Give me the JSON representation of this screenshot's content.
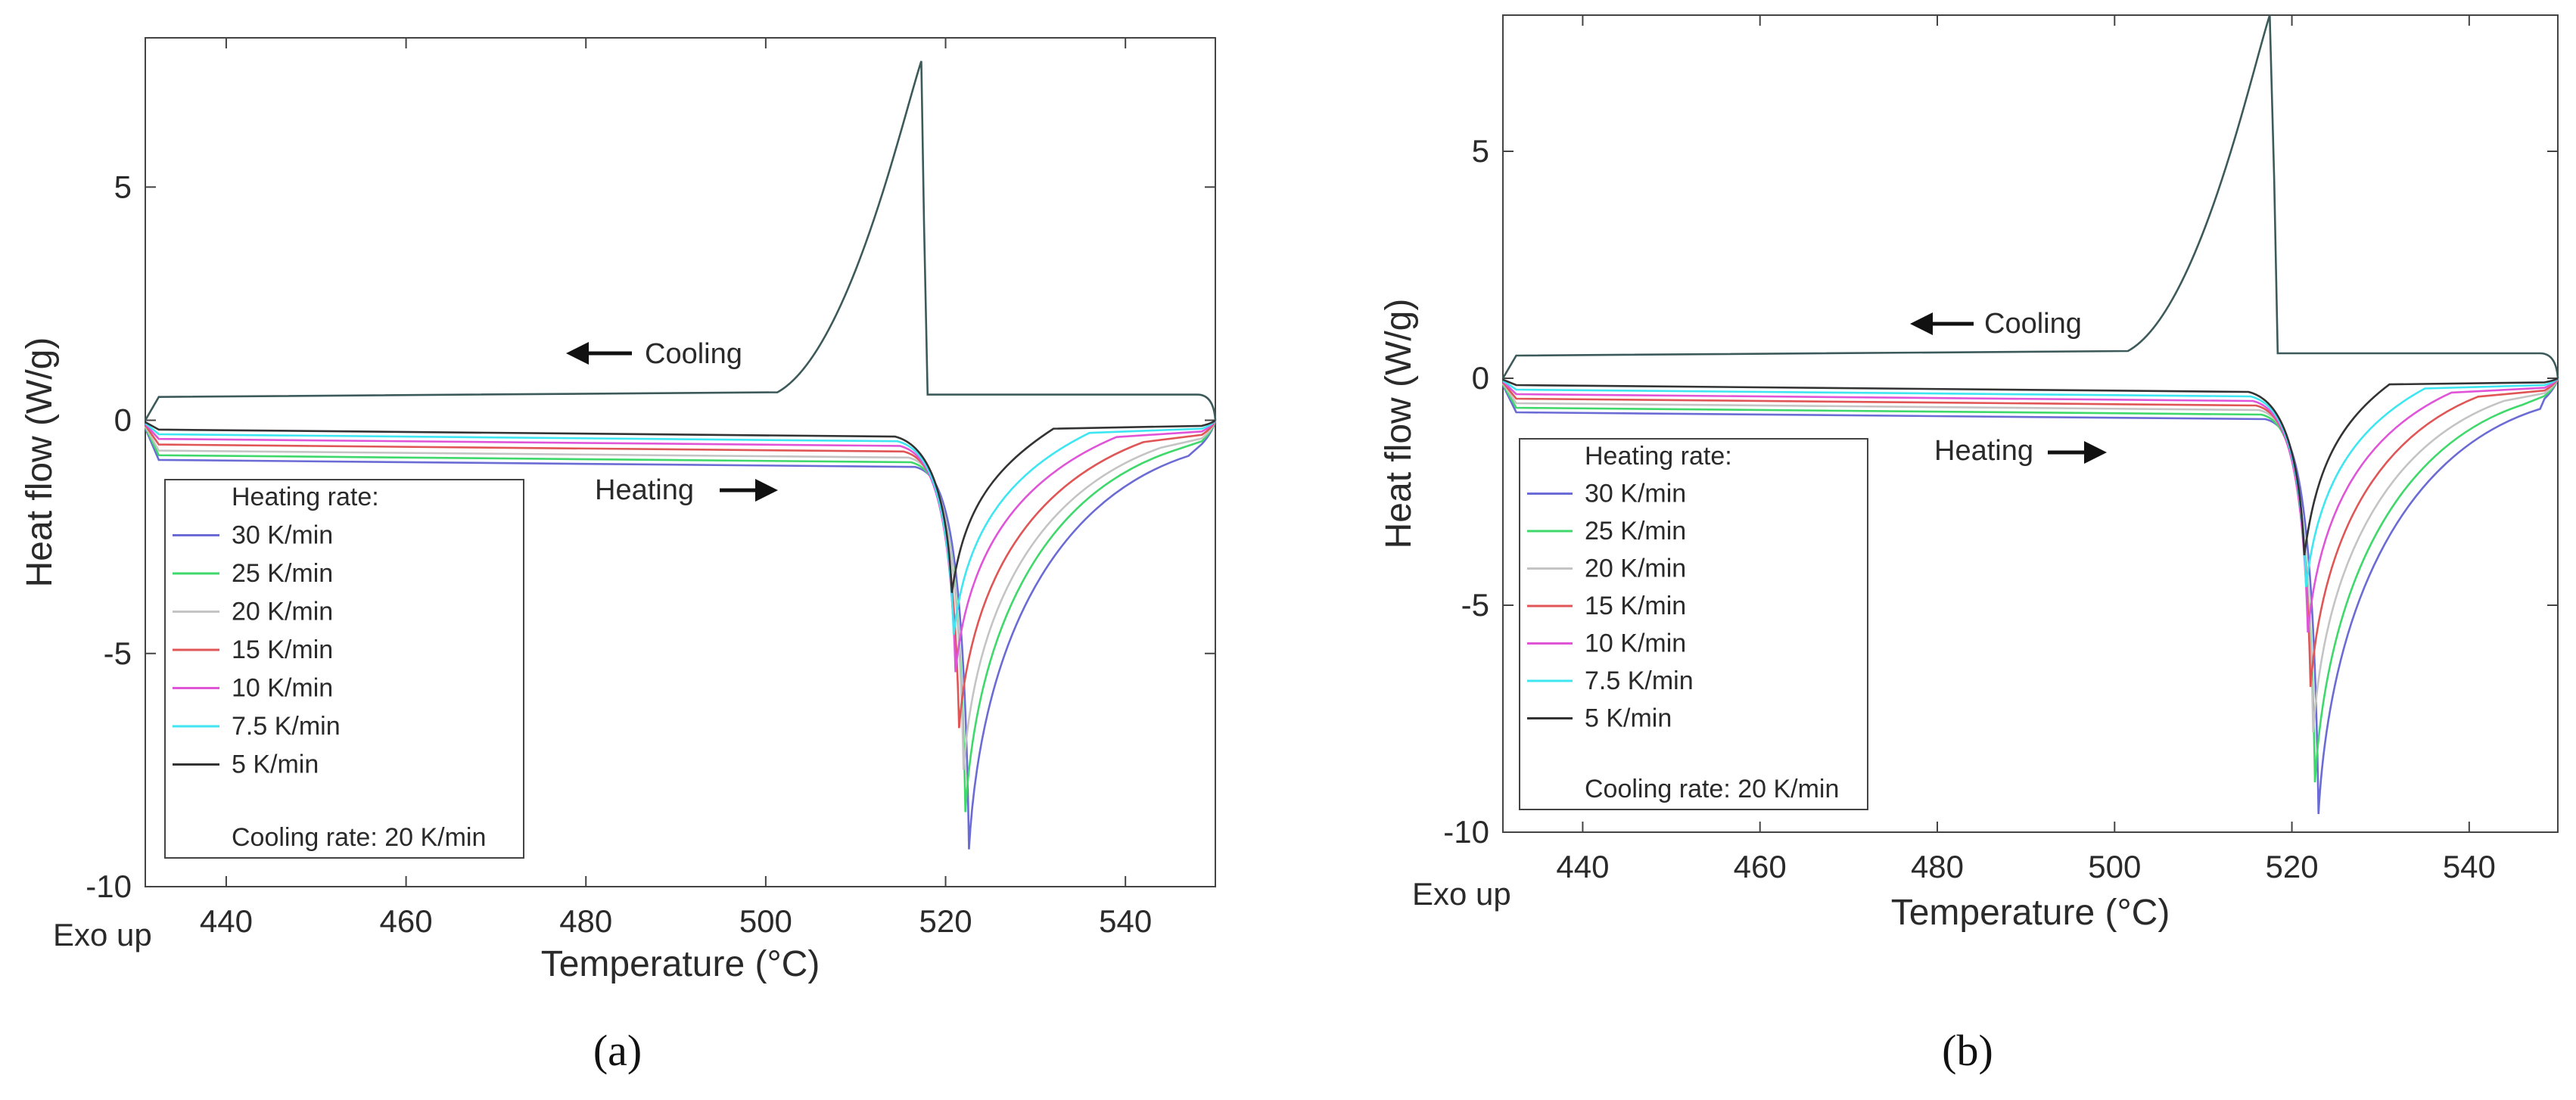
{
  "chart_data": [
    {
      "type": "line",
      "panel_label": "(a)",
      "xlabel": "Temperature (°C)",
      "ylabel": "Heat flow (W/g)",
      "corner_note": "Exo up",
      "xlim": [
        431,
        550
      ],
      "ylim": [
        -10,
        8.2
      ],
      "xticks": [
        440,
        460,
        480,
        500,
        520,
        540
      ],
      "yticks": [
        5,
        0,
        -5,
        -10
      ],
      "grid": false,
      "annotations": [
        {
          "text": "Cooling",
          "x": 481,
          "y": 1.35,
          "arrow": "left"
        },
        {
          "text": "Heating",
          "x": 478,
          "y": -1.6,
          "arrow": "right"
        }
      ],
      "legend": {
        "title": "Heating rate:",
        "footer": "Cooling rate: 20 K/min",
        "position": "lower-left"
      },
      "cooling": {
        "baseline": 0.55,
        "onset": 517.6,
        "peak_x": 517.3,
        "peak_y": 7.7,
        "color": "#3d5a5a"
      },
      "series": [
        {
          "name": "30 K/min",
          "color": "#6b6bd6",
          "baseline": -0.85,
          "peak_x": 522.6,
          "peak_y": -9.2,
          "return_x": 547
        },
        {
          "name": "25 K/min",
          "color": "#3fd86a",
          "baseline": -0.75,
          "peak_x": 522.2,
          "peak_y": -8.4,
          "return_x": 545
        },
        {
          "name": "20 K/min",
          "color": "#c4c4c4",
          "baseline": -0.65,
          "peak_x": 522.0,
          "peak_y": -7.5,
          "return_x": 544
        },
        {
          "name": "15 K/min",
          "color": "#e05555",
          "baseline": -0.52,
          "peak_x": 521.5,
          "peak_y": -6.6,
          "return_x": 542
        },
        {
          "name": "10 K/min",
          "color": "#e055d8",
          "baseline": -0.4,
          "peak_x": 521.1,
          "peak_y": -5.4,
          "return_x": 539
        },
        {
          "name": "7.5 K/min",
          "color": "#3ee6f2",
          "baseline": -0.3,
          "peak_x": 520.9,
          "peak_y": -4.6,
          "return_x": 536
        },
        {
          "name": "5 K/min",
          "color": "#333333",
          "baseline": -0.2,
          "peak_x": 520.7,
          "peak_y": -3.7,
          "return_x": 532
        }
      ]
    },
    {
      "type": "line",
      "panel_label": "(b)",
      "xlabel": "Temperature (°C)",
      "ylabel": "Heat flow (W/g)",
      "corner_note": "Exo up",
      "xlim": [
        431,
        550
      ],
      "ylim": [
        -10,
        8.0
      ],
      "xticks": [
        440,
        460,
        480,
        500,
        520,
        540
      ],
      "yticks": [
        5,
        0,
        -5,
        -10
      ],
      "grid": false,
      "annotations": [
        {
          "text": "Cooling",
          "x": 480,
          "y": 1.25,
          "arrow": "left"
        },
        {
          "text": "Heating",
          "x": 477,
          "y": -1.55,
          "arrow": "right"
        }
      ],
      "legend": {
        "title": "Heating rate:",
        "footer": "Cooling rate: 20 K/min",
        "position": "lower-left"
      },
      "cooling": {
        "baseline": 0.55,
        "onset": 518.0,
        "peak_x": 517.5,
        "peak_y": 8.0,
        "color": "#3d5a5a"
      },
      "series": [
        {
          "name": "30 K/min",
          "color": "#6b6bd6",
          "baseline": -0.75,
          "peak_x": 523.0,
          "peak_y": -9.6,
          "return_x": 548
        },
        {
          "name": "25 K/min",
          "color": "#3fd86a",
          "baseline": -0.65,
          "peak_x": 522.6,
          "peak_y": -8.9,
          "return_x": 546
        },
        {
          "name": "20 K/min",
          "color": "#c4c4c4",
          "baseline": -0.55,
          "peak_x": 522.4,
          "peak_y": -7.8,
          "return_x": 544
        },
        {
          "name": "15 K/min",
          "color": "#e05555",
          "baseline": -0.45,
          "peak_x": 522.1,
          "peak_y": -6.8,
          "return_x": 541
        },
        {
          "name": "10 K/min",
          "color": "#e055d8",
          "baseline": -0.35,
          "peak_x": 521.8,
          "peak_y": -5.6,
          "return_x": 538
        },
        {
          "name": "7.5 K/min",
          "color": "#3ee6f2",
          "baseline": -0.25,
          "peak_x": 521.6,
          "peak_y": -4.6,
          "return_x": 535
        },
        {
          "name": "5 K/min",
          "color": "#333333",
          "baseline": -0.15,
          "peak_x": 521.4,
          "peak_y": -3.9,
          "return_x": 531
        }
      ]
    }
  ]
}
